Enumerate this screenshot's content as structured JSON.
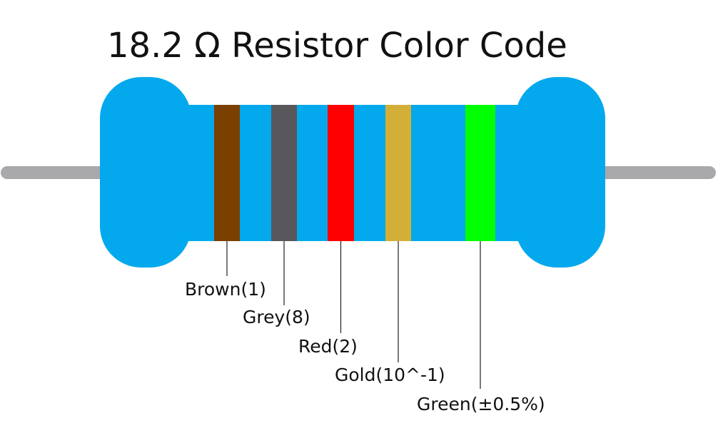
{
  "title": "18.2 Ω Resistor Color Code",
  "bands": [
    {
      "label": "Brown(1)",
      "color": "#7b3f00"
    },
    {
      "label": "Grey(8)",
      "color": "#58575b"
    },
    {
      "label": "Red(2)",
      "color": "#ff0000"
    },
    {
      "label": "Gold(10^-1)",
      "color": "#d4af37"
    },
    {
      "label": "Green(±0.5%)",
      "color": "#00ff00"
    }
  ]
}
